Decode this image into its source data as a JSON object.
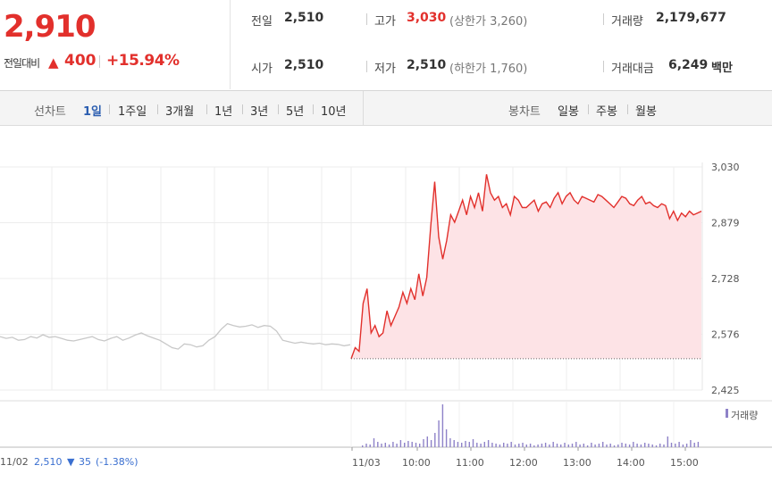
{
  "quote": {
    "price": "2,910",
    "change_label": "전일대비",
    "change_arrow": "▲",
    "change_value": "400",
    "change_percent": "+15.94%"
  },
  "stats": {
    "prev_close_label": "전일",
    "prev_close": "2,510",
    "high_label": "고가",
    "high": "3,030",
    "upper_limit": "(상한가 3,260)",
    "volume_label": "거래량",
    "volume": "2,179,677",
    "open_label": "시가",
    "open": "2,510",
    "low_label": "저가",
    "low": "2,510",
    "lower_limit": "(하한가 1,760)",
    "amount_label": "거래대금",
    "amount": "6,249",
    "amount_unit": "백만"
  },
  "toolbar": {
    "line_chart_label": "선차트",
    "periods": [
      "1일",
      "1주일",
      "3개월",
      "1년",
      "3년",
      "5년",
      "10년"
    ],
    "active_period": "1일",
    "candle_chart_label": "봉차트",
    "candle_periods": [
      "일봉",
      "주봉",
      "월봉"
    ]
  },
  "colors": {
    "up": "#e2302c",
    "active_period": "#2a5db0",
    "prev_day_line": "#c8c8c8",
    "area_fill": "#fde3e6",
    "volume_bar": "#8e82c8"
  },
  "footer": {
    "prev_date": "11/02",
    "prev_price": "2,510",
    "prev_arrow": "▼",
    "prev_change": "35",
    "prev_pct": "(-1.38%)"
  },
  "volume_legend": "거래량",
  "chart_data": {
    "type": "line",
    "y_ticks": [
      "3,030",
      "2,879",
      "2,728",
      "2,576",
      "2,425"
    ],
    "ylim": [
      2425,
      3030
    ],
    "x_ticks": [
      "11/03",
      "10:00",
      "11:00",
      "12:00",
      "13:00",
      "14:00",
      "15:00"
    ],
    "baseline": 2510,
    "series": [
      {
        "values_prev_day": [
          2570,
          2565,
          2568,
          2560,
          2562,
          2570,
          2566,
          2575,
          2568,
          2570,
          2565,
          2560,
          2558,
          2562,
          2566,
          2570,
          2562,
          2558,
          2565,
          2570,
          2560,
          2566,
          2574,
          2580,
          2572,
          2566,
          2560,
          2550,
          2540,
          2536,
          2550,
          2548,
          2542,
          2545,
          2560,
          2570,
          2590,
          2605,
          2600,
          2596,
          2598,
          2602,
          2595,
          2600,
          2598,
          2585,
          2560,
          2556,
          2552,
          2555,
          2552,
          2550,
          2552,
          2548,
          2550,
          2549,
          2545,
          2548
        ],
        "values_today": [
          2510,
          2540,
          2530,
          2660,
          2700,
          2580,
          2600,
          2570,
          2580,
          2640,
          2600,
          2625,
          2650,
          2690,
          2660,
          2700,
          2670,
          2740,
          2680,
          2730,
          2870,
          2990,
          2840,
          2780,
          2830,
          2900,
          2880,
          2910,
          2940,
          2900,
          2950,
          2920,
          2960,
          2910,
          3010,
          2960,
          2940,
          2950,
          2920,
          2930,
          2900,
          2950,
          2940,
          2920,
          2920,
          2930,
          2940,
          2910,
          2930,
          2935,
          2920,
          2945,
          2960,
          2930,
          2950,
          2960,
          2940,
          2930,
          2950,
          2945,
          2940,
          2935,
          2955,
          2950,
          2940,
          2930,
          2920,
          2935,
          2950,
          2945,
          2930,
          2925,
          2940,
          2950,
          2930,
          2935,
          2925,
          2920,
          2930,
          2925,
          2890,
          2910,
          2885,
          2905,
          2895,
          2910,
          2900,
          2905,
          2910
        ]
      }
    ]
  }
}
